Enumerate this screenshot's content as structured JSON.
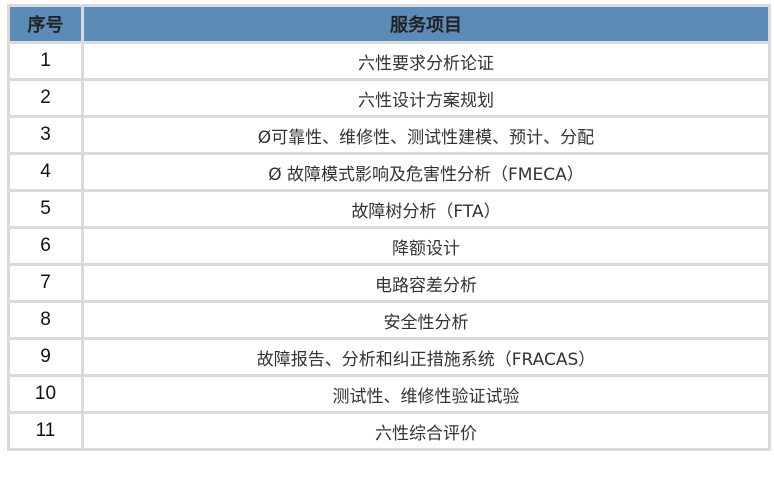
{
  "header": {
    "col_index": "序号",
    "col_item": "服务项目",
    "bg_color": "#5b8bb7"
  },
  "rows": [
    {
      "no": "1",
      "item": "六性要求分析论证"
    },
    {
      "no": "2",
      "item": "六性设计方案规划"
    },
    {
      "no": "3",
      "item": "Ø可靠性、维修性、测试性建模、预计、分配"
    },
    {
      "no": "4",
      "item": "Ø 故障模式影响及危害性分析（FMECA）"
    },
    {
      "no": "5",
      "item": "故障树分析（FTA）"
    },
    {
      "no": "6",
      "item": "降额设计"
    },
    {
      "no": "7",
      "item": "电路容差分析"
    },
    {
      "no": "8",
      "item": "安全性分析"
    },
    {
      "no": "9",
      "item": "故障报告、分析和纠正措施系统（FRACAS）"
    },
    {
      "no": "10",
      "item": "测试性、维修性验证试验"
    },
    {
      "no": "11",
      "item": "六性综合评价"
    }
  ]
}
